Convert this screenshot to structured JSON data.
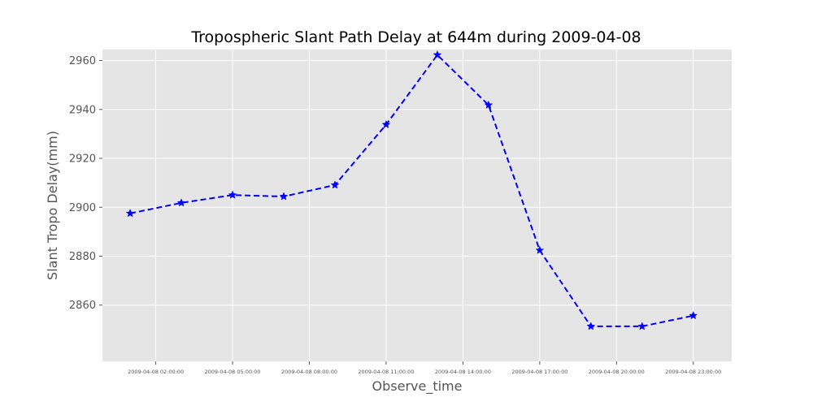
{
  "chart_data": {
    "type": "line",
    "title": "Tropospheric Slant Path Delay at 644m during 2009-04-08",
    "xlabel": "Observe_time",
    "ylabel": "Slant Tropo Delay(mm)",
    "x": [
      "2009-04-08 01:00:00",
      "2009-04-08 03:00:00",
      "2009-04-08 05:00:00",
      "2009-04-08 07:00:00",
      "2009-04-08 09:00:00",
      "2009-04-08 11:00:00",
      "2009-04-08 13:00:00",
      "2009-04-08 15:00:00",
      "2009-04-08 17:00:00",
      "2009-04-08 19:00:00",
      "2009-04-08 21:00:00",
      "2009-04-08 23:00:00"
    ],
    "series": [
      {
        "values": [
          2897.5,
          2901.8,
          2905.0,
          2904.4,
          2909.1,
          2933.8,
          2962.3,
          2941.8,
          2882.4,
          2851.3,
          2851.3,
          2855.7
        ]
      }
    ],
    "xticks": [
      "2009-04-08 02:00:00",
      "2009-04-08 05:00:00",
      "2009-04-08 08:00:00",
      "2009-04-08 11:00:00",
      "2009-04-08 14:00:00",
      "2009-04-08 17:00:00",
      "2009-04-08 20:00:00",
      "2009-04-08 23:00:00"
    ],
    "yticks": [
      2860,
      2880,
      2900,
      2920,
      2940,
      2960
    ],
    "xlim": [
      "2009-04-07 23:55:00",
      "2009-04-09 00:30:00"
    ],
    "ylim": [
      2837,
      2964.5
    ],
    "grid": true,
    "style": {
      "plot_background": "#e5e5e5",
      "grid_color": "#ffffff",
      "line_color": "#0000ff",
      "line_style": "dashed",
      "marker": "star"
    }
  }
}
